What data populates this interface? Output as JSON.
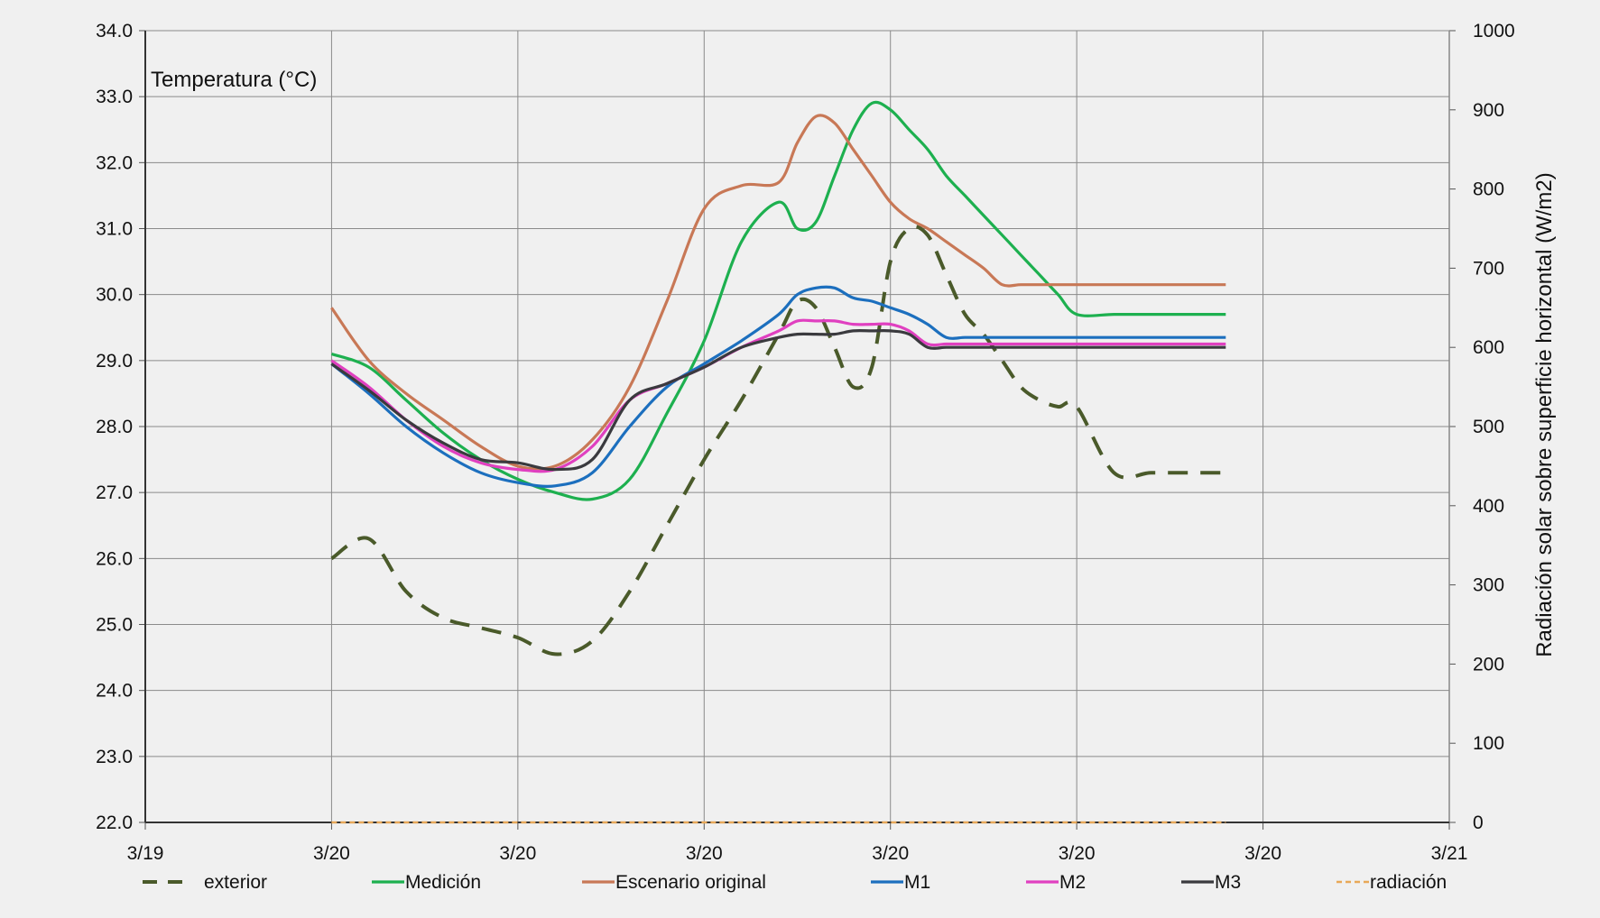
{
  "chart_data": {
    "type": "line",
    "y_title": "Temperatura (°C)",
    "y2_title": "Radiación solar sobre superficie horizontal  (W/m2)",
    "x_ticks": [
      "3/19",
      "3/20",
      "3/20",
      "3/20",
      "3/20",
      "3/20",
      "3/20",
      "3/21"
    ],
    "x_range": [
      0,
      7
    ],
    "ylim": [
      22.0,
      34.0
    ],
    "y_ticks": [
      "22.0",
      "23.0",
      "24.0",
      "25.0",
      "26.0",
      "27.0",
      "28.0",
      "29.0",
      "30.0",
      "31.0",
      "32.0",
      "33.0",
      "34.0"
    ],
    "y2lim": [
      0,
      1000
    ],
    "y2_ticks": [
      "0",
      "100",
      "200",
      "300",
      "400",
      "500",
      "600",
      "700",
      "800",
      "900",
      "1000"
    ],
    "grid": true,
    "legend_position": "bottom",
    "series": [
      {
        "name": "exterior",
        "color": "#4a5a2a",
        "dash": "dashed",
        "axis": "left",
        "x": [
          1.0,
          1.2,
          1.4,
          1.6,
          1.8,
          2.0,
          2.2,
          2.4,
          2.6,
          2.8,
          3.0,
          3.2,
          3.4,
          3.5,
          3.6,
          3.7,
          3.8,
          3.9,
          4.0,
          4.1,
          4.2,
          4.3,
          4.4,
          4.5,
          4.6,
          4.7,
          4.8,
          4.9,
          5.0,
          5.2,
          5.4,
          5.6,
          5.8
        ],
        "y": [
          26.0,
          26.3,
          25.5,
          25.1,
          24.95,
          24.8,
          24.55,
          24.75,
          25.5,
          26.5,
          27.5,
          28.4,
          29.4,
          29.9,
          29.8,
          29.2,
          28.6,
          28.9,
          30.5,
          31.0,
          30.9,
          30.3,
          29.7,
          29.4,
          29.0,
          28.6,
          28.4,
          28.3,
          28.3,
          27.3,
          27.3,
          27.3,
          27.3
        ]
      },
      {
        "name": "Medición",
        "color": "#1db04f",
        "dash": "solid",
        "axis": "left",
        "x": [
          1.0,
          1.2,
          1.4,
          1.6,
          1.8,
          2.0,
          2.2,
          2.4,
          2.6,
          2.8,
          3.0,
          3.2,
          3.4,
          3.5,
          3.6,
          3.7,
          3.8,
          3.9,
          4.0,
          4.1,
          4.2,
          4.3,
          4.4,
          4.5,
          4.6,
          4.7,
          4.8,
          4.9,
          5.0,
          5.2,
          5.4,
          5.6,
          5.8
        ],
        "y": [
          29.1,
          28.9,
          28.4,
          27.9,
          27.5,
          27.2,
          27.0,
          26.9,
          27.2,
          28.2,
          29.3,
          30.8,
          31.4,
          31.0,
          31.1,
          31.8,
          32.5,
          32.9,
          32.8,
          32.5,
          32.2,
          31.8,
          31.5,
          31.2,
          30.9,
          30.6,
          30.3,
          30.0,
          29.7,
          29.7,
          29.7,
          29.7,
          29.7
        ]
      },
      {
        "name": "Escenario original",
        "color": "#c87856",
        "dash": "solid",
        "axis": "left",
        "x": [
          1.0,
          1.2,
          1.4,
          1.6,
          1.8,
          2.0,
          2.2,
          2.4,
          2.6,
          2.8,
          3.0,
          3.2,
          3.4,
          3.5,
          3.6,
          3.7,
          3.8,
          3.9,
          4.0,
          4.1,
          4.2,
          4.3,
          4.4,
          4.5,
          4.6,
          4.7,
          4.8,
          4.9,
          5.0,
          5.2,
          5.4,
          5.6,
          5.8
        ],
        "y": [
          29.8,
          29.0,
          28.5,
          28.1,
          27.7,
          27.4,
          27.4,
          27.8,
          28.6,
          29.9,
          31.3,
          31.65,
          31.7,
          32.3,
          32.7,
          32.6,
          32.2,
          31.8,
          31.4,
          31.15,
          31.0,
          30.8,
          30.6,
          30.4,
          30.15,
          30.15,
          30.15,
          30.15,
          30.15,
          30.15,
          30.15,
          30.15,
          30.15
        ]
      },
      {
        "name": "M1",
        "color": "#1c6fbe",
        "dash": "solid",
        "axis": "left",
        "x": [
          1.0,
          1.2,
          1.4,
          1.6,
          1.8,
          2.0,
          2.2,
          2.4,
          2.6,
          2.8,
          3.0,
          3.2,
          3.4,
          3.5,
          3.6,
          3.7,
          3.8,
          3.9,
          4.0,
          4.1,
          4.2,
          4.3,
          4.4,
          4.5,
          4.6,
          4.7,
          4.8,
          4.9,
          5.0,
          5.2,
          5.4,
          5.6,
          5.8
        ],
        "y": [
          28.95,
          28.5,
          28.0,
          27.6,
          27.3,
          27.15,
          27.1,
          27.3,
          28.0,
          28.6,
          28.95,
          29.3,
          29.7,
          30.0,
          30.1,
          30.1,
          29.95,
          29.9,
          29.8,
          29.7,
          29.55,
          29.35,
          29.35,
          29.35,
          29.35,
          29.35,
          29.35,
          29.35,
          29.35,
          29.35,
          29.35,
          29.35,
          29.35
        ]
      },
      {
        "name": "M2",
        "color": "#e040c0",
        "dash": "solid",
        "axis": "left",
        "x": [
          1.0,
          1.2,
          1.4,
          1.6,
          1.8,
          2.0,
          2.2,
          2.4,
          2.6,
          2.8,
          3.0,
          3.2,
          3.4,
          3.5,
          3.6,
          3.7,
          3.8,
          3.9,
          4.0,
          4.1,
          4.2,
          4.3,
          4.4,
          4.5,
          4.6,
          4.7,
          4.8,
          4.9,
          5.0,
          5.2,
          5.4,
          5.6,
          5.8
        ],
        "y": [
          29.0,
          28.6,
          28.1,
          27.7,
          27.45,
          27.35,
          27.35,
          27.7,
          28.4,
          28.65,
          28.9,
          29.2,
          29.45,
          29.6,
          29.6,
          29.6,
          29.55,
          29.55,
          29.55,
          29.45,
          29.25,
          29.25,
          29.25,
          29.25,
          29.25,
          29.25,
          29.25,
          29.25,
          29.25,
          29.25,
          29.25,
          29.25,
          29.25
        ]
      },
      {
        "name": "M3",
        "color": "#3a3a3e",
        "dash": "solid",
        "axis": "left",
        "x": [
          1.0,
          1.2,
          1.4,
          1.6,
          1.8,
          2.0,
          2.2,
          2.4,
          2.6,
          2.8,
          3.0,
          3.2,
          3.4,
          3.5,
          3.6,
          3.7,
          3.8,
          3.9,
          4.0,
          4.1,
          4.2,
          4.3,
          4.4,
          4.5,
          4.6,
          4.7,
          4.8,
          4.9,
          5.0,
          5.2,
          5.4,
          5.6,
          5.8
        ],
        "y": [
          28.95,
          28.55,
          28.1,
          27.75,
          27.5,
          27.45,
          27.35,
          27.5,
          28.4,
          28.65,
          28.9,
          29.2,
          29.35,
          29.4,
          29.4,
          29.4,
          29.45,
          29.45,
          29.45,
          29.4,
          29.2,
          29.2,
          29.2,
          29.2,
          29.2,
          29.2,
          29.2,
          29.2,
          29.2,
          29.2,
          29.2,
          29.2,
          29.2
        ]
      },
      {
        "name": "radiación",
        "color": "#e8a858",
        "dash": "dotted",
        "axis": "right",
        "x": [
          1.0,
          1.2,
          1.4,
          1.6,
          1.8,
          2.0,
          2.2,
          2.4,
          2.6,
          2.8,
          3.0,
          3.2,
          3.4,
          3.5,
          3.6,
          3.7,
          3.8,
          3.9,
          4.0,
          4.1,
          4.2,
          4.3,
          4.4,
          4.5,
          4.6,
          4.7,
          4.8,
          4.9,
          5.0,
          5.2,
          5.4,
          5.6,
          5.8
        ],
        "y": [
          0,
          0,
          0,
          0,
          0,
          0,
          0,
          0,
          0,
          0,
          0,
          0,
          0,
          0,
          0,
          0,
          0,
          0,
          0,
          0,
          0,
          0,
          0,
          0,
          0,
          0,
          0,
          0,
          0,
          0,
          0,
          0,
          0
        ]
      }
    ]
  }
}
